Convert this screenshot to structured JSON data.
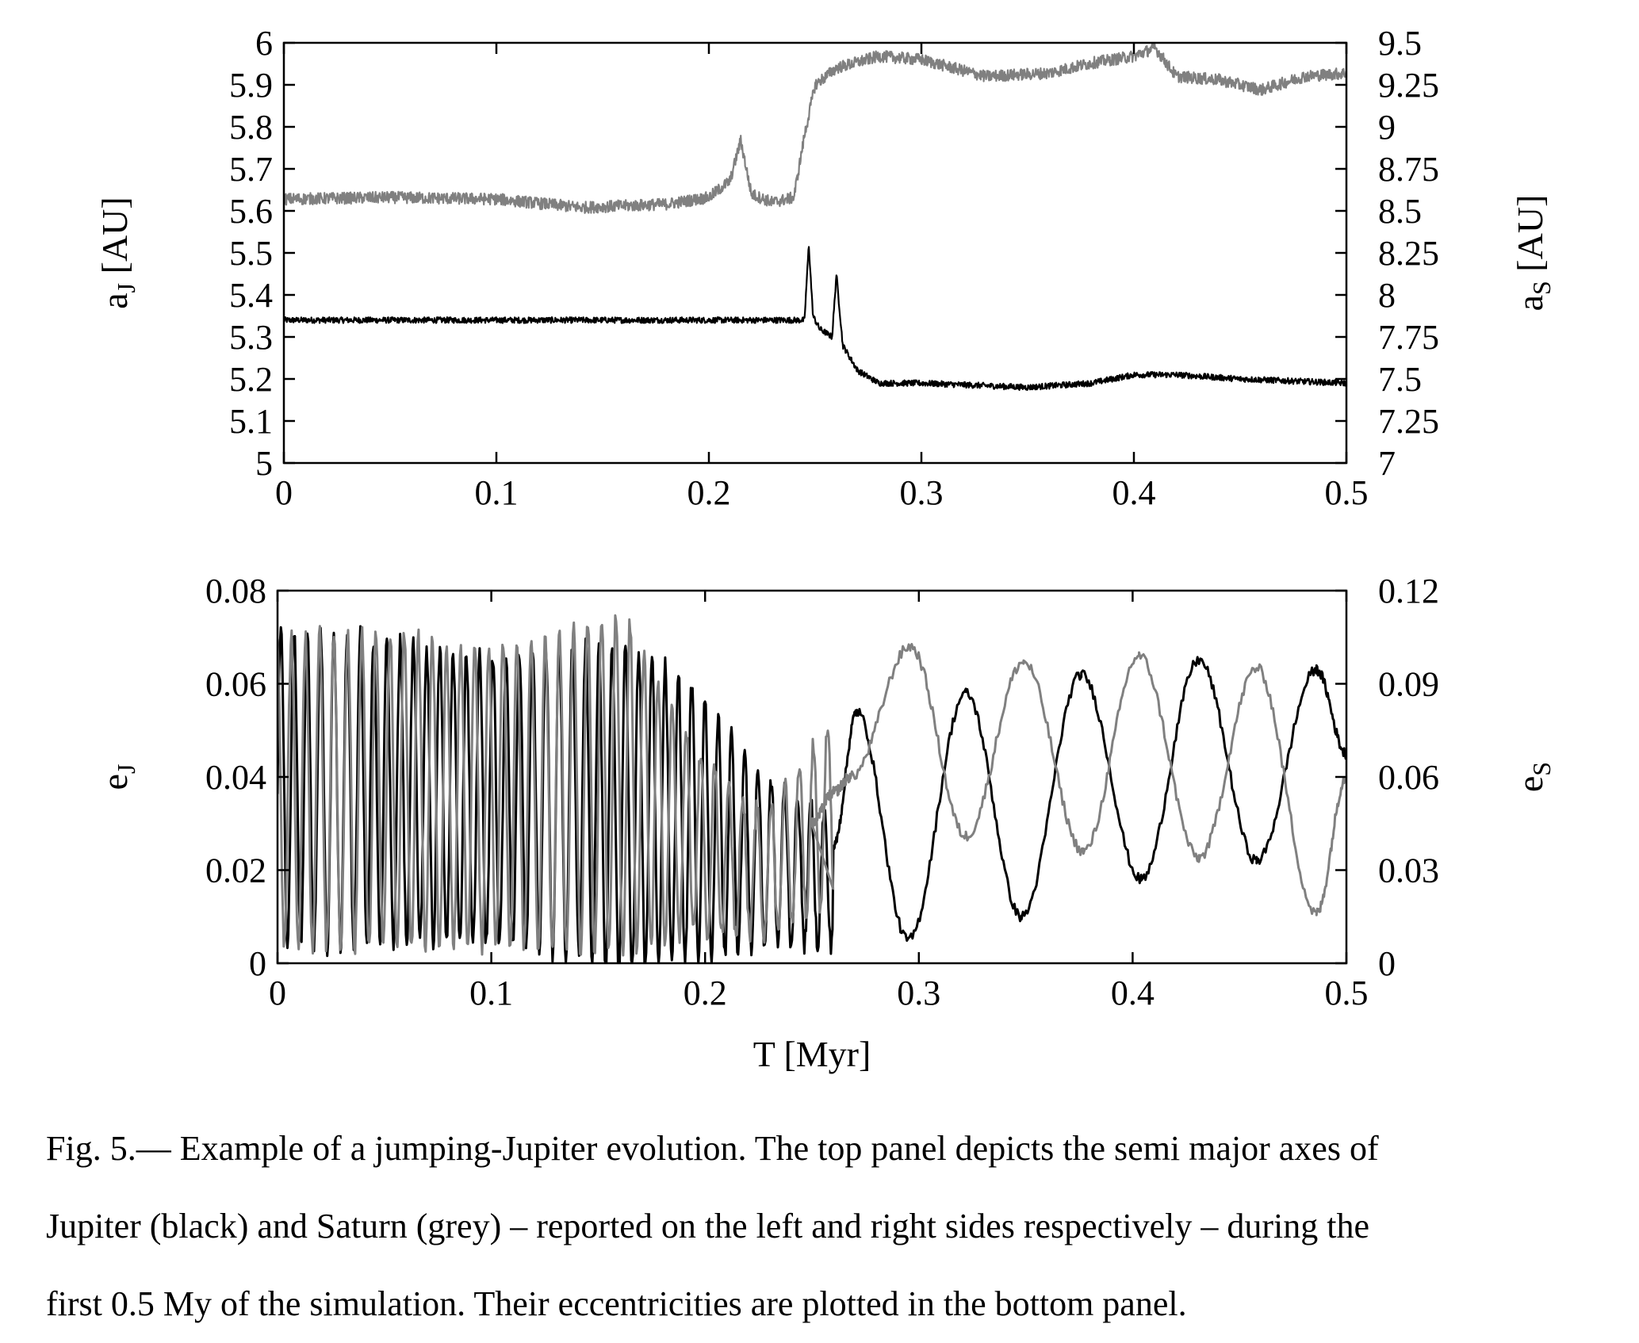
{
  "chart_data": [
    {
      "type": "line",
      "panel": "top",
      "xlabel": "",
      "ylabel_left": {
        "main": "a",
        "sub": "J",
        "unit": " [AU]"
      },
      "ylabel_right": {
        "main": "a",
        "sub": "S",
        "unit": " [AU]"
      },
      "xlim": [
        0,
        0.5
      ],
      "ylim_left": [
        5,
        6
      ],
      "ylim_right": [
        7,
        9.5
      ],
      "xticks": [
        "0",
        "0.1",
        "0.2",
        "0.3",
        "0.4",
        "0.5"
      ],
      "yticks_left": [
        "5",
        "5.1",
        "5.2",
        "5.3",
        "5.4",
        "5.5",
        "5.6",
        "5.7",
        "5.8",
        "5.9",
        "6"
      ],
      "yticks_right": [
        "7",
        "7.25",
        "7.5",
        "7.75",
        "8",
        "8.25",
        "8.5",
        "8.75",
        "9",
        "9.25",
        "9.5"
      ],
      "grid": false,
      "legend": "none",
      "series": [
        {
          "axis": "left",
          "color": "#000000",
          "noise": 0.007,
          "x": [
            0,
            0.05,
            0.1,
            0.15,
            0.2,
            0.24,
            0.245,
            0.247,
            0.249,
            0.252,
            0.255,
            0.258,
            0.26,
            0.263,
            0.27,
            0.28,
            0.3,
            0.35,
            0.38,
            0.4,
            0.42,
            0.45,
            0.5
          ],
          "y": [
            5.34,
            5.34,
            5.34,
            5.34,
            5.34,
            5.34,
            5.34,
            5.52,
            5.35,
            5.32,
            5.31,
            5.3,
            5.45,
            5.28,
            5.22,
            5.19,
            5.19,
            5.18,
            5.19,
            5.21,
            5.21,
            5.2,
            5.19
          ]
        },
        {
          "axis": "right",
          "color": "#808080",
          "noise": 0.035,
          "x": [
            0,
            0.05,
            0.1,
            0.14,
            0.18,
            0.2,
            0.21,
            0.215,
            0.22,
            0.23,
            0.24,
            0.245,
            0.25,
            0.26,
            0.28,
            0.3,
            0.33,
            0.36,
            0.38,
            0.4,
            0.41,
            0.42,
            0.44,
            0.46,
            0.48,
            0.5
          ],
          "y": [
            8.57,
            8.58,
            8.57,
            8.52,
            8.54,
            8.58,
            8.68,
            8.92,
            8.6,
            8.55,
            8.58,
            8.95,
            9.25,
            9.35,
            9.42,
            9.4,
            9.3,
            9.32,
            9.38,
            9.42,
            9.47,
            9.3,
            9.28,
            9.22,
            9.3,
            9.32
          ]
        }
      ]
    },
    {
      "type": "line",
      "panel": "bottom",
      "xlabel": "T [Myr]",
      "ylabel_left": {
        "main": "e",
        "sub": "J",
        "unit": ""
      },
      "ylabel_right": {
        "main": "e",
        "sub": "S",
        "unit": ""
      },
      "xlim": [
        0,
        0.5
      ],
      "ylim_left": [
        0,
        0.08
      ],
      "ylim_right": [
        0,
        0.12
      ],
      "xticks": [
        "0",
        "0.1",
        "0.2",
        "0.3",
        "0.4",
        "0.5"
      ],
      "yticks_left": [
        "0",
        "0.02",
        "0.04",
        "0.06",
        "0.08"
      ],
      "yticks_right": [
        "0",
        "0.03",
        "0.06",
        "0.09",
        "0.12"
      ],
      "grid": false,
      "legend": "none",
      "series": [
        {
          "axis": "left",
          "color": "#000000",
          "fast": {
            "x_end": 0.26,
            "period": 0.0062,
            "mid": [
              0.038,
              0.037,
              0.036,
              0.035,
              0.035,
              0.033,
              0.03,
              0.022,
              0.018
            ],
            "amp": [
              0.034,
              0.034,
              0.032,
              0.031,
              0.033,
              0.036,
              0.03,
              0.018,
              0.014
            ]
          },
          "x": [
            0.26,
            0.271,
            0.295,
            0.322,
            0.348,
            0.376,
            0.404,
            0.431,
            0.458,
            0.486,
            0.5
          ],
          "y": [
            0.025,
            0.054,
            0.005,
            0.058,
            0.01,
            0.062,
            0.018,
            0.065,
            0.022,
            0.063,
            0.045
          ]
        },
        {
          "axis": "right",
          "color": "#808080",
          "fast": {
            "x_end": 0.26,
            "period": 0.0066,
            "mid": [
              0.055,
              0.056,
              0.055,
              0.053,
              0.055,
              0.058,
              0.04,
              0.028,
              0.05
            ],
            "amp": [
              0.05,
              0.051,
              0.05,
              0.048,
              0.052,
              0.055,
              0.03,
              0.02,
              0.03
            ]
          },
          "x": [
            0.25,
            0.26,
            0.268,
            0.296,
            0.322,
            0.349,
            0.377,
            0.403,
            0.431,
            0.458,
            0.486,
            0.5
          ],
          "y": [
            0.045,
            0.055,
            0.06,
            0.102,
            0.041,
            0.097,
            0.036,
            0.099,
            0.034,
            0.095,
            0.016,
            0.06
          ]
        }
      ]
    }
  ],
  "caption": {
    "line1": "Fig.  5.— Example of a jumping-Jupiter evolution.  The top panel depicts the semi major axes of",
    "line2": "Jupiter (black) and Saturn (grey) – reported on the left and right sides respectively – during the",
    "line3": "first 0.5 My of the simulation. Their eccentricities are plotted in the bottom panel."
  }
}
